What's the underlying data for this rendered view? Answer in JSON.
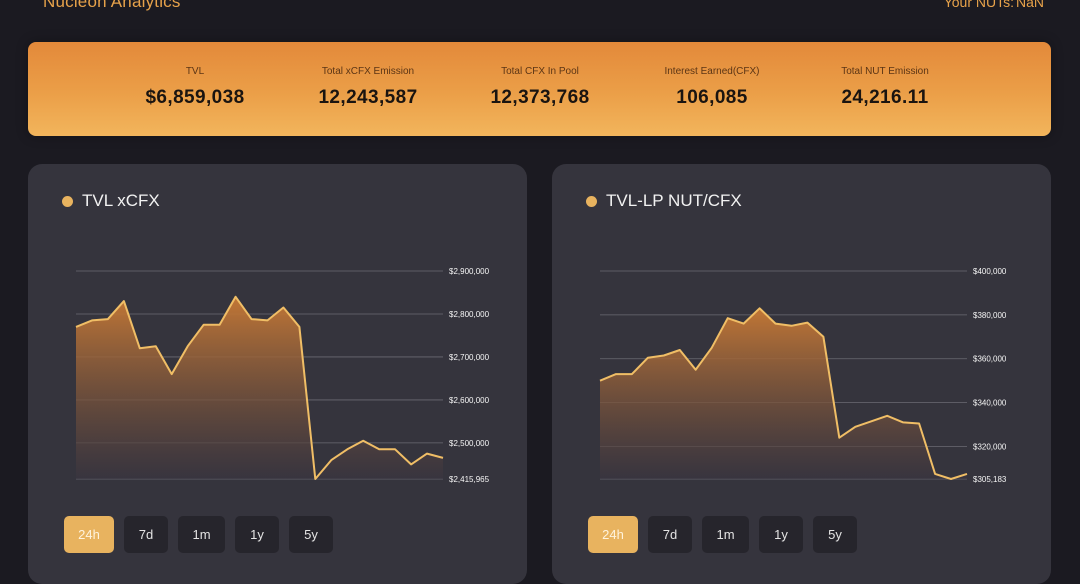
{
  "header": {
    "brand": "Nucleon Analytics",
    "nuts_label": "Your NUTs:",
    "nuts_value": "NaN"
  },
  "stats": [
    {
      "label": "TVL",
      "value": "$6,859,038"
    },
    {
      "label": "Total xCFX Emission",
      "value": "12,243,587"
    },
    {
      "label": "Total CFX In Pool",
      "value": "12,373,768"
    },
    {
      "label": "Interest Earned(CFX)",
      "value": "106,085"
    },
    {
      "label": "Total NUT Emission",
      "value": "24,216.11"
    }
  ],
  "colors": {
    "accent": "#e8b35f",
    "line": "#f0be66",
    "card_bg": "#35343d",
    "page_bg": "#1b1a21"
  },
  "range_buttons": [
    "24h",
    "7d",
    "1m",
    "1y",
    "5y"
  ],
  "active_range": "24h",
  "chart_data": [
    {
      "type": "area",
      "title": "TVL xCFX",
      "ylim": [
        2415965,
        2900000
      ],
      "yticks": [
        2900000,
        2800000,
        2700000,
        2600000,
        2500000,
        2415965
      ],
      "ytick_labels": [
        "$2,900,000",
        "$2,800,000",
        "$2,700,000",
        "$2,600,000",
        "$2,500,000",
        "$2,415,965"
      ],
      "grid": true,
      "values": [
        2770000,
        2785000,
        2788000,
        2830000,
        2720000,
        2725000,
        2660000,
        2725000,
        2775000,
        2775000,
        2840000,
        2788000,
        2785000,
        2815000,
        2770000,
        2415965,
        2460000,
        2485000,
        2505000,
        2485000,
        2485000,
        2450000,
        2475000,
        2465000
      ]
    },
    {
      "type": "area",
      "title": "TVL-LP NUT/CFX",
      "ylim": [
        305183,
        400000
      ],
      "yticks": [
        400000,
        380000,
        360000,
        340000,
        320000,
        305183
      ],
      "ytick_labels": [
        "$400,000",
        "$380,000",
        "$360,000",
        "$340,000",
        "$320,000",
        "$305,183"
      ],
      "grid": true,
      "values": [
        350000,
        353000,
        353000,
        360500,
        361500,
        364000,
        355000,
        365000,
        378500,
        376000,
        383000,
        376000,
        375000,
        376500,
        370000,
        324000,
        329000,
        331500,
        334000,
        331000,
        330500,
        307500,
        305183,
        307500
      ]
    }
  ]
}
